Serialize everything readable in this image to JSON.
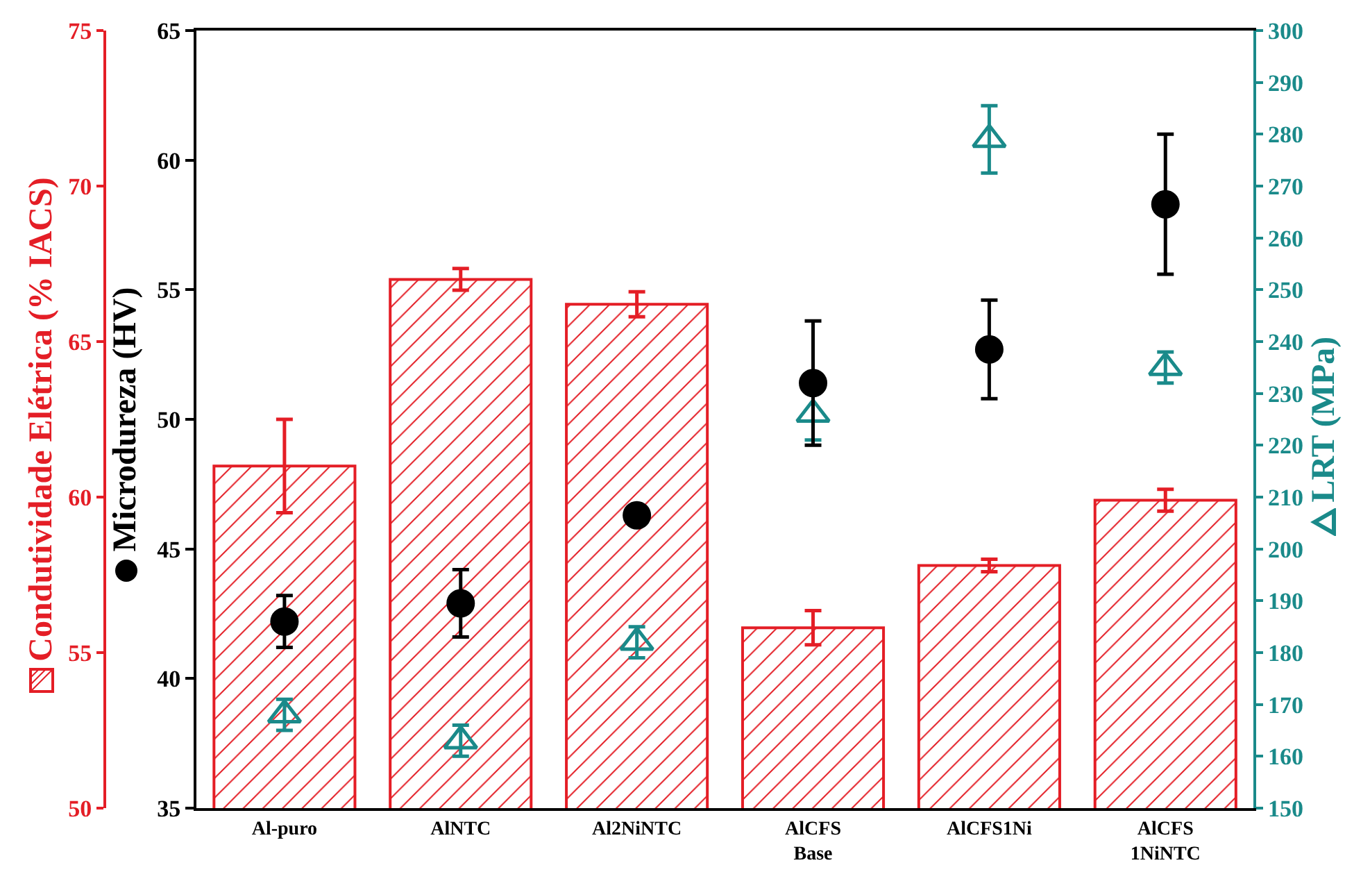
{
  "chart_data": {
    "type": "bar",
    "ylabel": "Microdureza (HV)",
    "y2label": "LRT (MPa)",
    "y3label": "Condutividade Elétrica (% IACS)",
    "categories": [
      "Al-puro",
      "AlNTC",
      "Al2NiNTC",
      "AlCFS\nBase",
      "AlCFS1Ni",
      "AlCFS\n1NiNTC"
    ],
    "ylim": [
      35,
      65
    ],
    "yticks": [
      35,
      40,
      45,
      50,
      55,
      60,
      65
    ],
    "y2lim": [
      150,
      300
    ],
    "y2ticks": [
      150,
      160,
      170,
      180,
      190,
      200,
      210,
      220,
      230,
      240,
      250,
      260,
      270,
      280,
      290,
      300
    ],
    "y3lim": [
      50,
      75
    ],
    "y3ticks": [
      50,
      55,
      60,
      65,
      70,
      75
    ],
    "grid": false,
    "series": [
      {
        "axis": "y3",
        "color": "#e41e26",
        "values": [
          61.0,
          67.0,
          66.2,
          55.8,
          57.8,
          59.9
        ],
        "errors": [
          1.5,
          0.35,
          0.4,
          0.55,
          0.2,
          0.35
        ]
      },
      {
        "type": "scatter",
        "marker": "circle",
        "color": "#000000",
        "values": [
          42.2,
          42.9,
          46.3,
          51.4,
          52.7,
          58.3
        ],
        "errors": [
          1.0,
          1.3,
          null,
          2.4,
          1.9,
          2.7
        ]
      },
      {
        "type": "scatter",
        "axis": "y2",
        "marker": "triangle",
        "color": "#1a8a8a",
        "values": [
          168,
          163,
          182,
          226,
          279,
          235
        ],
        "errors": [
          3,
          3,
          3,
          5,
          6.5,
          3
        ]
      }
    ]
  }
}
